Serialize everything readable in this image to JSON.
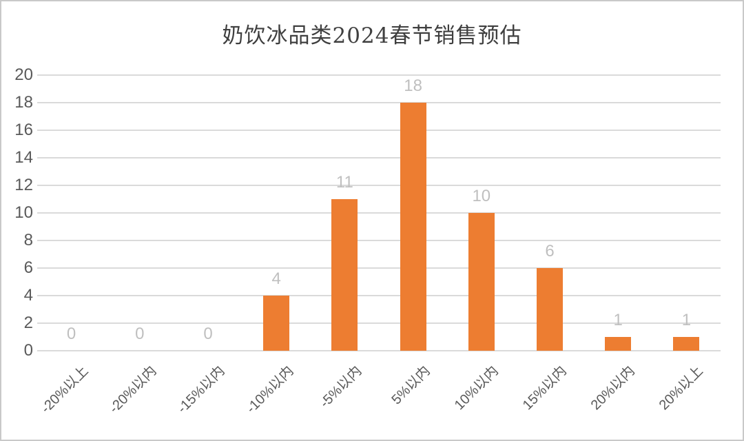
{
  "chart_data": {
    "type": "bar",
    "title": "奶饮冰品类2024春节销售预估",
    "categories": [
      "-20%以上",
      "-20%以内",
      "-15%以内",
      "-10%以内",
      "-5%以内",
      "5%以内",
      "10%以内",
      "15%以内",
      "20%以内",
      "20%以上"
    ],
    "values": [
      0,
      0,
      0,
      4,
      11,
      18,
      10,
      6,
      1,
      1
    ],
    "xlabel": "",
    "ylabel": "",
    "ylim": [
      0,
      20
    ],
    "yticks": [
      0,
      2,
      4,
      6,
      8,
      10,
      12,
      14,
      16,
      18,
      20
    ],
    "grid": "horizontal",
    "legend_position": "none",
    "data_labels_shown": true,
    "colors": {
      "bar": "#ed7d31",
      "data_label": "#bfbfbf",
      "axis_label": "#595959",
      "title": "#3f3f3f",
      "gridline": "#dadada",
      "frame_border": "#c9c9c9",
      "background": "#ffffff"
    }
  }
}
